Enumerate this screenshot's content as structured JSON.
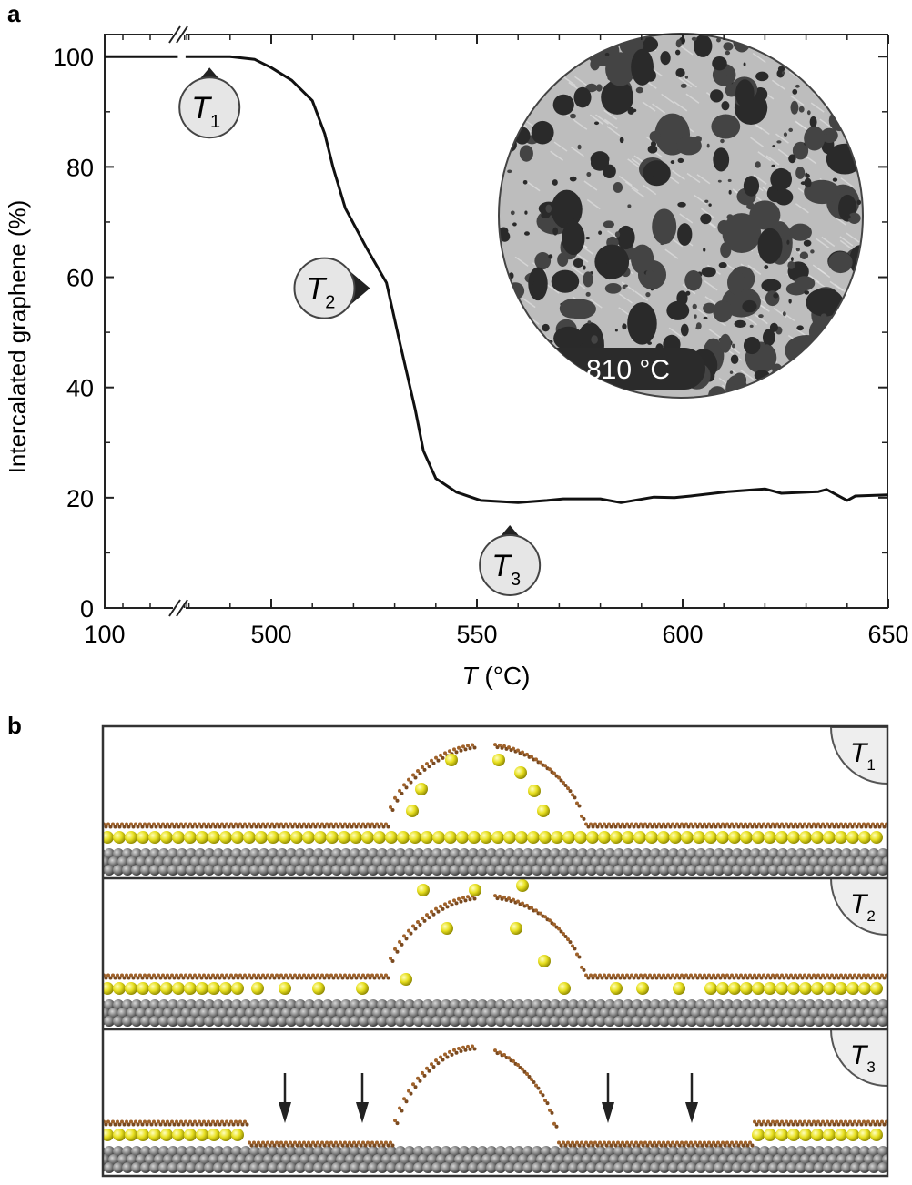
{
  "chart_data": {
    "type": "line",
    "panel_label": "a",
    "ylabel": "Intercalated graphene (%)",
    "xlabel_var": "T",
    "xlabel_unit": "(°C)",
    "x": [
      100,
      430,
      450,
      465,
      490,
      496,
      500,
      505,
      510,
      513,
      515,
      518,
      523,
      528,
      531,
      535,
      537,
      540,
      545,
      551,
      560,
      567,
      571,
      580,
      585,
      593,
      598,
      602,
      611,
      620,
      624,
      633,
      635,
      640,
      642,
      650
    ],
    "values": [
      100,
      100,
      null,
      100,
      100,
      99.5,
      98,
      95.7,
      92,
      86,
      80,
      72.5,
      65.5,
      59,
      49,
      36,
      28.5,
      23.5,
      21,
      19.5,
      19.1,
      19.5,
      19.8,
      19.8,
      19.1,
      20.1,
      20,
      20.3,
      21.1,
      21.6,
      20.8,
      21.1,
      21.5,
      19.5,
      20.3,
      20.5
    ],
    "color": "#111111",
    "xlim": [
      100,
      650
    ],
    "ylim": [
      0,
      104
    ],
    "xticks": [
      100,
      500,
      550,
      600,
      650
    ],
    "yticks": [
      0,
      20,
      40,
      60,
      80,
      100
    ],
    "annotations": [
      {
        "text": "T",
        "sub": "1",
        "x": 485,
        "y": 100,
        "pointer": "up"
      },
      {
        "text": "T",
        "sub": "2",
        "x": 524,
        "y": 58,
        "pointer": "right"
      },
      {
        "text": "T",
        "sub": "3",
        "x": 558,
        "y": 17,
        "pointer": "up"
      }
    ],
    "inset": {
      "label": "810 °C"
    }
  },
  "panel_b": {
    "label": "b",
    "rows": [
      {
        "text": "T",
        "sub": "1"
      },
      {
        "text": "T",
        "sub": "2"
      },
      {
        "text": "T",
        "sub": "3"
      }
    ]
  }
}
